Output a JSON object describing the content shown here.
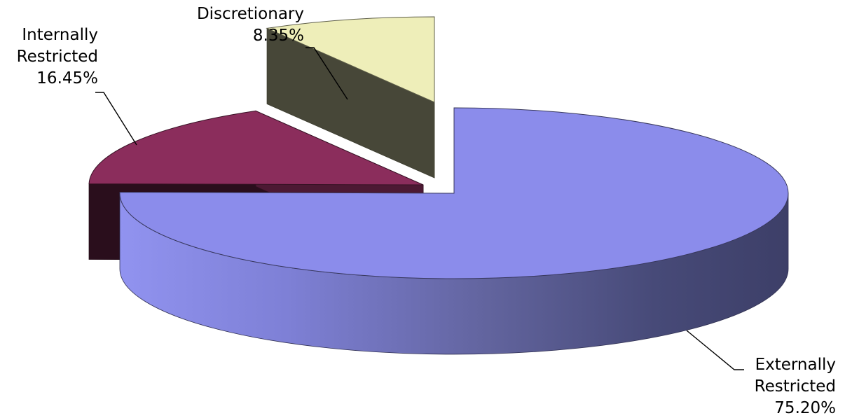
{
  "chart_data": {
    "type": "pie",
    "three_d": true,
    "title": "",
    "legend": "none",
    "slices": [
      {
        "label_lines": [
          "Externally",
          "Restricted"
        ],
        "value": 75.2,
        "value_label": "75.20%",
        "color": "#8b8ceb",
        "exploded": false
      },
      {
        "label_lines": [
          "Internally",
          "Restricted"
        ],
        "value": 16.45,
        "value_label": "16.45%",
        "color": "#8b2d5c",
        "exploded": true
      },
      {
        "label_lines": [
          "Discretionary"
        ],
        "value": 8.35,
        "value_label": "8.35%",
        "color": "#eeeeb9",
        "exploded": true
      }
    ]
  }
}
